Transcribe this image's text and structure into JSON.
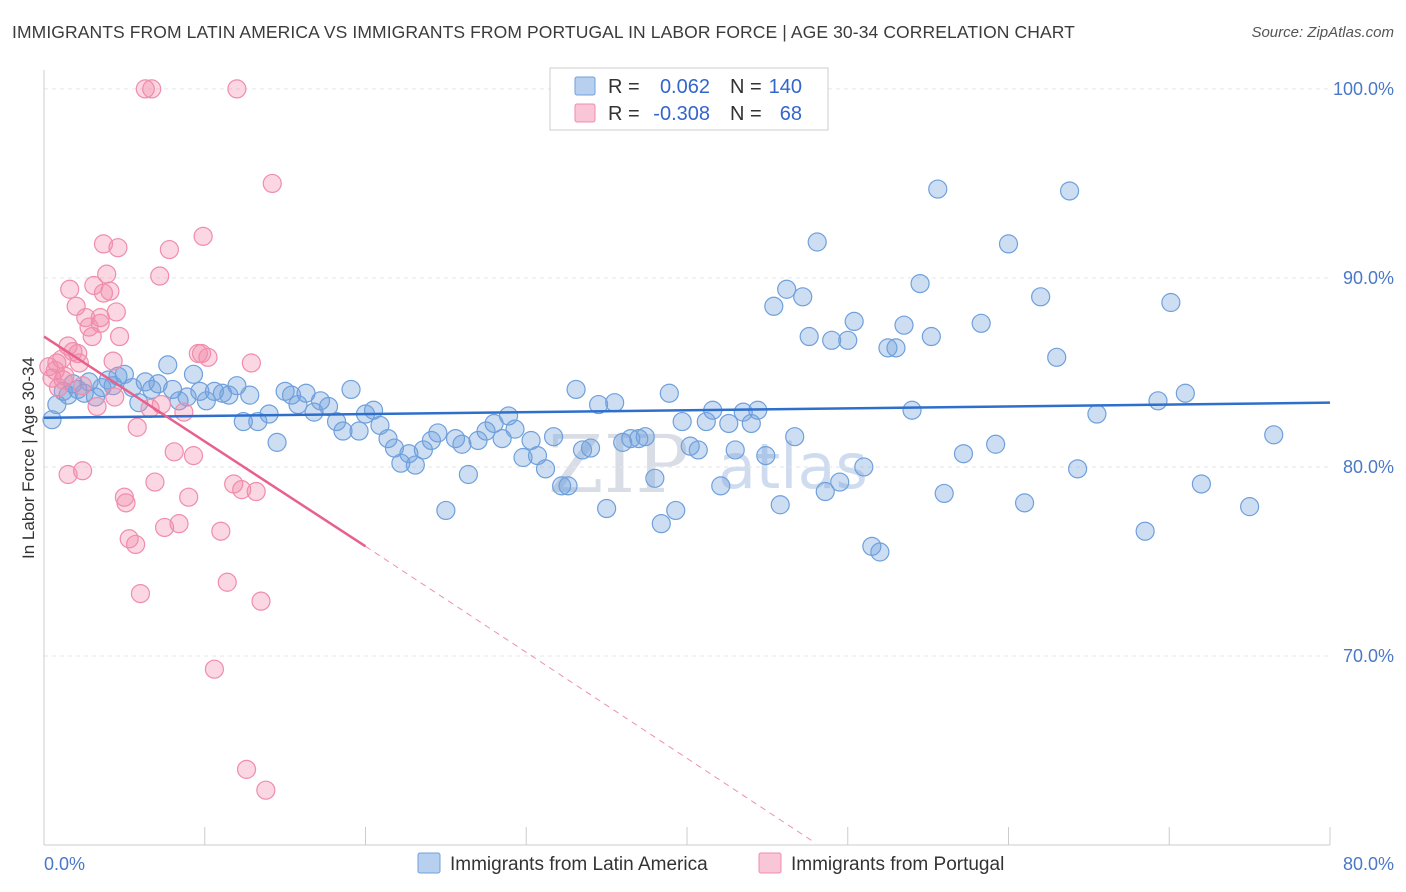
{
  "title": "IMMIGRANTS FROM LATIN AMERICA VS IMMIGRANTS FROM PORTUGAL IN LABOR FORCE | AGE 30-34 CORRELATION CHART",
  "source": "Source: ZipAtlas.com",
  "watermark": {
    "zip": "ZIP",
    "atlas": "atlas"
  },
  "colors": {
    "blue": "#6fa0dc",
    "pink": "#f08cac",
    "blue_line": "#2f6fcc",
    "pink_line": "#e8608c",
    "tick_text": "#4a78c8"
  },
  "legend": {
    "rows": [
      {
        "r_label": "R =",
        "r_value": "0.062",
        "n_label": "N =",
        "n_value": "140"
      },
      {
        "r_label": "R =",
        "r_value": "-0.308",
        "n_label": "N =",
        "n_value": "68"
      }
    ]
  },
  "chart_data": {
    "type": "scatter",
    "xlabel": "",
    "ylabel": "In Labor Force | Age 30-34",
    "x_tick_labels": [
      "0.0%",
      "80.0%"
    ],
    "y_tick_labels": [
      "100.0%",
      "90.0%",
      "80.0%",
      "70.0%"
    ],
    "y_ticks": [
      100,
      90,
      80,
      70
    ],
    "xlim": [
      0,
      80
    ],
    "ylim": [
      60,
      101
    ],
    "grid": true,
    "legend_position": "top-center",
    "series": [
      {
        "name": "Immigrants from Latin America",
        "color": "#6fa0dc",
        "trend": {
          "x": [
            0,
            80
          ],
          "y": [
            82.6,
            83.4
          ]
        },
        "points": [
          [
            0.5,
            82.5
          ],
          [
            0.8,
            83.3
          ],
          [
            1.2,
            84.0
          ],
          [
            1.5,
            83.8
          ],
          [
            1.8,
            84.4
          ],
          [
            2.1,
            84.1
          ],
          [
            2.5,
            83.9
          ],
          [
            2.8,
            84.5
          ],
          [
            3.2,
            83.7
          ],
          [
            3.6,
            84.2
          ],
          [
            4.0,
            84.6
          ],
          [
            4.3,
            84.3
          ],
          [
            4.6,
            84.8
          ],
          [
            5.0,
            84.9
          ],
          [
            5.5,
            84.2
          ],
          [
            5.9,
            83.4
          ],
          [
            6.3,
            84.5
          ],
          [
            6.7,
            84.1
          ],
          [
            7.1,
            84.4
          ],
          [
            7.7,
            85.4
          ],
          [
            8.0,
            84.1
          ],
          [
            8.4,
            83.5
          ],
          [
            8.9,
            83.7
          ],
          [
            9.3,
            84.9
          ],
          [
            9.7,
            84.0
          ],
          [
            10.1,
            83.5
          ],
          [
            10.6,
            84.0
          ],
          [
            11.1,
            83.9
          ],
          [
            11.5,
            83.8
          ],
          [
            12.0,
            84.3
          ],
          [
            12.4,
            82.4
          ],
          [
            12.8,
            83.8
          ],
          [
            13.3,
            82.4
          ],
          [
            14.0,
            82.8
          ],
          [
            14.5,
            81.3
          ],
          [
            15.0,
            84.0
          ],
          [
            15.4,
            83.8
          ],
          [
            15.8,
            83.3
          ],
          [
            16.3,
            83.9
          ],
          [
            16.8,
            82.9
          ],
          [
            17.2,
            83.5
          ],
          [
            17.7,
            83.2
          ],
          [
            18.2,
            82.4
          ],
          [
            18.6,
            81.9
          ],
          [
            19.1,
            84.1
          ],
          [
            19.6,
            81.9
          ],
          [
            20.0,
            82.8
          ],
          [
            20.5,
            83.0
          ],
          [
            20.9,
            82.2
          ],
          [
            21.4,
            81.5
          ],
          [
            21.8,
            81.0
          ],
          [
            22.2,
            80.2
          ],
          [
            22.7,
            80.7
          ],
          [
            23.1,
            80.1
          ],
          [
            23.6,
            80.9
          ],
          [
            24.1,
            81.4
          ],
          [
            24.5,
            81.8
          ],
          [
            25.0,
            77.7
          ],
          [
            25.6,
            81.5
          ],
          [
            26.0,
            81.2
          ],
          [
            26.4,
            79.6
          ],
          [
            27.0,
            81.4
          ],
          [
            27.5,
            81.9
          ],
          [
            28.0,
            82.3
          ],
          [
            28.5,
            81.5
          ],
          [
            28.9,
            82.7
          ],
          [
            29.3,
            82.0
          ],
          [
            29.8,
            80.5
          ],
          [
            30.3,
            81.4
          ],
          [
            30.7,
            80.6
          ],
          [
            31.2,
            79.9
          ],
          [
            31.7,
            81.6
          ],
          [
            32.2,
            79.0
          ],
          [
            32.6,
            79.0
          ],
          [
            33.1,
            84.1
          ],
          [
            33.5,
            80.9
          ],
          [
            34.0,
            81.0
          ],
          [
            34.5,
            83.3
          ],
          [
            35.0,
            77.8
          ],
          [
            35.5,
            83.4
          ],
          [
            36.0,
            81.3
          ],
          [
            36.5,
            81.5
          ],
          [
            37.0,
            81.5
          ],
          [
            37.4,
            81.6
          ],
          [
            38.0,
            79.4
          ],
          [
            38.4,
            77.0
          ],
          [
            38.9,
            83.9
          ],
          [
            39.3,
            77.7
          ],
          [
            39.7,
            82.4
          ],
          [
            40.2,
            81.1
          ],
          [
            40.7,
            80.9
          ],
          [
            41.2,
            82.4
          ],
          [
            41.6,
            83.0
          ],
          [
            42.1,
            79.0
          ],
          [
            42.6,
            82.3
          ],
          [
            43.0,
            80.9
          ],
          [
            43.5,
            82.9
          ],
          [
            44.0,
            82.3
          ],
          [
            44.4,
            83.0
          ],
          [
            44.9,
            80.6
          ],
          [
            45.4,
            88.5
          ],
          [
            45.8,
            78.0
          ],
          [
            46.2,
            89.4
          ],
          [
            46.7,
            81.6
          ],
          [
            47.2,
            89.0
          ],
          [
            47.6,
            86.9
          ],
          [
            48.1,
            91.9
          ],
          [
            48.6,
            78.7
          ],
          [
            49.0,
            86.7
          ],
          [
            49.5,
            79.2
          ],
          [
            50.0,
            86.7
          ],
          [
            50.4,
            87.7
          ],
          [
            51.0,
            80.0
          ],
          [
            51.5,
            75.8
          ],
          [
            52.0,
            75.5
          ],
          [
            52.5,
            86.3
          ],
          [
            53.0,
            86.3
          ],
          [
            53.5,
            87.5
          ],
          [
            54.0,
            83.0
          ],
          [
            54.5,
            89.7
          ],
          [
            55.2,
            86.9
          ],
          [
            55.6,
            94.7
          ],
          [
            56.0,
            78.6
          ],
          [
            57.2,
            80.7
          ],
          [
            58.3,
            87.6
          ],
          [
            59.2,
            81.2
          ],
          [
            60.0,
            91.8
          ],
          [
            61.0,
            78.1
          ],
          [
            62.0,
            89.0
          ],
          [
            63.0,
            85.8
          ],
          [
            63.8,
            94.6
          ],
          [
            64.3,
            79.9
          ],
          [
            65.5,
            82.8
          ],
          [
            68.5,
            76.6
          ],
          [
            69.3,
            83.5
          ],
          [
            70.1,
            88.7
          ],
          [
            71.0,
            83.9
          ],
          [
            72.0,
            79.1
          ],
          [
            76.5,
            81.7
          ],
          [
            75.0,
            77.9
          ]
        ]
      },
      {
        "name": "Immigrants from Portugal",
        "color": "#f08cac",
        "trend": {
          "x": [
            0,
            20
          ],
          "y": [
            86.9,
            75.8
          ]
        },
        "trend_dashed": {
          "x": [
            20,
            48
          ],
          "y": [
            75.8,
            60.1
          ]
        },
        "points": [
          [
            0.3,
            85.3
          ],
          [
            0.5,
            84.7
          ],
          [
            0.7,
            85.1
          ],
          [
            0.9,
            84.2
          ],
          [
            1.1,
            85.7
          ],
          [
            1.3,
            84.8
          ],
          [
            1.5,
            86.4
          ],
          [
            1.6,
            89.4
          ],
          [
            1.8,
            86.1
          ],
          [
            2.0,
            88.5
          ],
          [
            2.2,
            85.5
          ],
          [
            2.4,
            84.3
          ],
          [
            2.6,
            87.9
          ],
          [
            2.8,
            87.4
          ],
          [
            3.0,
            86.9
          ],
          [
            3.1,
            89.6
          ],
          [
            3.3,
            83.2
          ],
          [
            3.5,
            87.6
          ],
          [
            3.7,
            89.2
          ],
          [
            3.9,
            90.2
          ],
          [
            4.1,
            89.3
          ],
          [
            4.3,
            85.6
          ],
          [
            4.5,
            88.2
          ],
          [
            4.7,
            86.9
          ],
          [
            5.0,
            78.4
          ],
          [
            5.3,
            76.2
          ],
          [
            5.7,
            75.9
          ],
          [
            6.0,
            73.3
          ],
          [
            6.3,
            100.0
          ],
          [
            6.6,
            83.1
          ],
          [
            6.9,
            79.2
          ],
          [
            7.2,
            90.1
          ],
          [
            7.5,
            76.8
          ],
          [
            7.8,
            91.5
          ],
          [
            8.1,
            80.8
          ],
          [
            8.4,
            77.0
          ],
          [
            8.7,
            82.9
          ],
          [
            9.0,
            78.4
          ],
          [
            9.3,
            80.6
          ],
          [
            9.6,
            86.0
          ],
          [
            9.9,
            92.2
          ],
          [
            10.2,
            85.8
          ],
          [
            10.6,
            69.3
          ],
          [
            11.0,
            76.6
          ],
          [
            11.4,
            73.9
          ],
          [
            11.8,
            79.1
          ],
          [
            12.0,
            100.0
          ],
          [
            12.3,
            78.8
          ],
          [
            12.6,
            64.0
          ],
          [
            12.9,
            85.5
          ],
          [
            13.2,
            78.7
          ],
          [
            13.5,
            72.9
          ],
          [
            13.8,
            62.9
          ],
          [
            14.2,
            95.0
          ],
          [
            2.4,
            79.8
          ],
          [
            1.5,
            79.6
          ],
          [
            3.7,
            91.8
          ],
          [
            4.6,
            91.6
          ],
          [
            5.1,
            78.1
          ],
          [
            6.7,
            100.0
          ],
          [
            7.3,
            83.3
          ],
          [
            2.1,
            86.0
          ],
          [
            1.2,
            84.6
          ],
          [
            0.8,
            85.5
          ],
          [
            5.8,
            82.1
          ],
          [
            9.8,
            86.0
          ],
          [
            3.5,
            87.9
          ],
          [
            4.4,
            83.7
          ]
        ]
      }
    ]
  }
}
